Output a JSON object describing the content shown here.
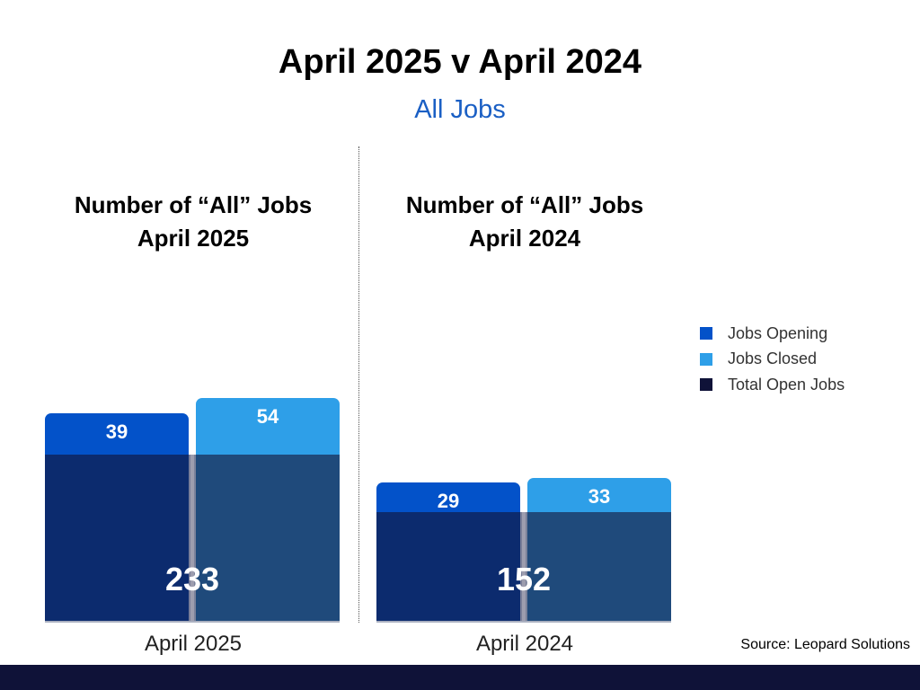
{
  "title": "April 2025 v April 2024",
  "subtitle": "All Jobs",
  "source": "Source: Leopard Solutions",
  "colors": {
    "jobs_opening": "#0352c9",
    "jobs_closed": "#2e9fe8",
    "total_open_jobs": "#0f1238",
    "total_open_left": "#0c2b6e",
    "total_open_right": "#1f4a7b",
    "subtitle": "#1a5fc4",
    "footer": "#0f1238"
  },
  "chart_data": {
    "type": "bar",
    "legend": [
      {
        "name": "Jobs Opening",
        "color": "#0352c9"
      },
      {
        "name": "Jobs Closed",
        "color": "#2e9fe8"
      },
      {
        "name": "Total Open Jobs",
        "color": "#0f1238"
      }
    ],
    "legend_position": "right",
    "panels": [
      {
        "title_line1": "Number of “All” Jobs",
        "title_line2": "April 2025",
        "category": "April 2025",
        "jobs_opening": 39,
        "jobs_closed": 54,
        "total_open_jobs": 233
      },
      {
        "title_line1": "Number of “All” Jobs",
        "title_line2": "April 2024",
        "category": "April 2024",
        "jobs_opening": 29,
        "jobs_closed": 33,
        "total_open_jobs": 152
      }
    ]
  }
}
